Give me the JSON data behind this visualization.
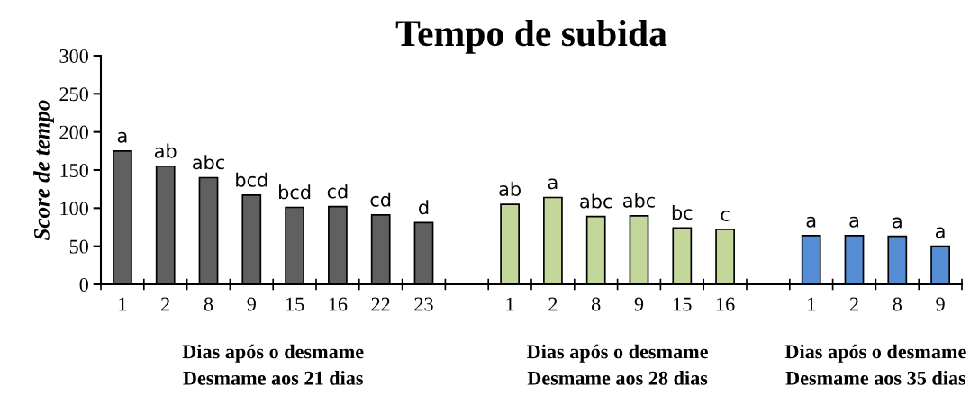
{
  "chart_data": {
    "type": "bar",
    "title": "Tempo de subida",
    "ylabel": "Score de tempo",
    "categories": [
      "1",
      "2",
      "8",
      "9",
      "15",
      "16",
      "22",
      "23",
      null,
      "1",
      "2",
      "8",
      "9",
      "15",
      "16",
      null,
      "1",
      "2",
      "8",
      "9"
    ],
    "values": [
      175,
      155,
      140,
      117,
      101,
      102,
      91,
      81,
      null,
      105,
      114,
      89,
      90,
      74,
      72,
      null,
      64,
      64,
      63,
      50
    ],
    "colors": [
      "#606060",
      "#606060",
      "#606060",
      "#606060",
      "#606060",
      "#606060",
      "#606060",
      "#606060",
      null,
      "#c4d79b",
      "#c4d79b",
      "#c4d79b",
      "#c4d79b",
      "#c4d79b",
      "#c4d79b",
      null,
      "#558ed5",
      "#558ed5",
      "#558ed5",
      "#558ed5"
    ],
    "value_labels": [
      "a",
      "ab",
      "abc",
      "bcd",
      "bcd",
      "cd",
      "cd",
      "d",
      null,
      "ab",
      "a",
      "abc",
      "abc",
      "bc",
      "c",
      null,
      "a",
      "a",
      "a",
      "a"
    ],
    "annotations": [
      "Dias após o desmame\nDesmame aos 21 dias",
      "Dias após o desmame\nDesmame aos 28 dias",
      "Dias após o desmame\nDesmame aos 35 dias"
    ],
    "ylim": [
      0,
      300
    ],
    "yticks": [
      0,
      50,
      100,
      150,
      200,
      250,
      300
    ],
    "grid": false
  }
}
